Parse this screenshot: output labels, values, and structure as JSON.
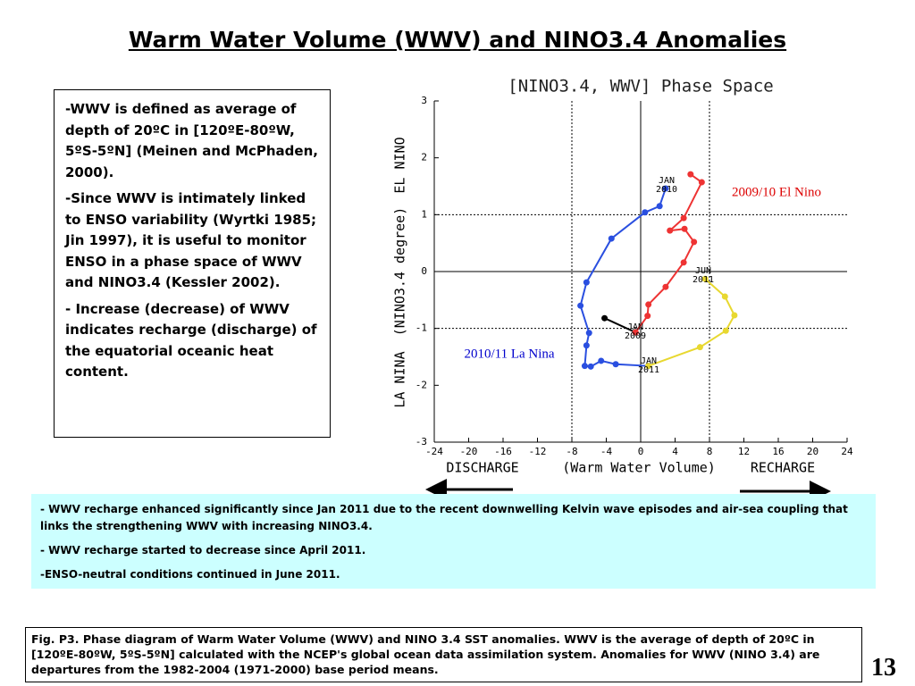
{
  "title": "Warm Water Volume (WWV) and NINO3.4 Anomalies",
  "left_box": {
    "paragraphs": [
      "-WWV is defined as average of depth of 20ºC in [120ºE-80ºW, 5ºS-5ºN] (Meinen and McPhaden, 2000).",
      "-Since WWV is intimately linked to ENSO variability (Wyrtki 1985; Jin 1997), it is useful to monitor ENSO in a phase space of WWV and NINO3.4 (Kessler 2002).",
      "- Increase (decrease) of WWV indicates recharge (discharge) of the equatorial oceanic heat content."
    ]
  },
  "notes_box": {
    "paragraphs": [
      "- WWV recharge enhanced significantly since Jan 2011 due to the recent downwelling Kelvin wave episodes  and air-sea coupling that links the strengthening WWV with increasing NINO3.4.",
      "- WWV recharge started to decrease since April 2011.",
      "-ENSO-neutral conditions continued in June 2011."
    ]
  },
  "caption": "Fig. P3. Phase diagram of Warm Water Volume (WWV) and NINO 3.4 SST anomalies. WWV is the average of depth of 20ºC in [120ºE-80ºW, 5ºS-5ºN] calculated with the NCEP's global ocean data assimilation system. Anomalies for WWV (NINO 3.4) are departures from the 1982-2004 (1971-2000) base period means.",
  "page_number": "13",
  "chart_data": {
    "type": "line",
    "title": "[NINO3.4, WWV] Phase Space",
    "xlabel": [
      "DISCHARGE",
      "(Warm Water Volume)",
      "RECHARGE"
    ],
    "ylabel": [
      "LA NINA",
      "(NINO3.4 degree)",
      "EL NINO"
    ],
    "xlim": [
      -24,
      24
    ],
    "xticks": [
      -24,
      -20,
      -16,
      -12,
      -8,
      -4,
      0,
      4,
      8,
      12,
      16,
      20,
      24
    ],
    "ylim": [
      -3,
      3
    ],
    "yticks": [
      -3,
      -2,
      -1,
      0,
      1,
      2,
      3
    ],
    "reference_lines": {
      "x": [
        -8,
        0,
        8
      ],
      "y": [
        -1,
        0,
        1
      ]
    },
    "series": [
      {
        "color": "#000000",
        "x": [
          -4.2,
          -0.6
        ],
        "values": [
          -0.82,
          -1.07
        ]
      },
      {
        "color": "#ee3333",
        "x": [
          -0.6,
          0.8,
          0.9,
          2.9,
          5.0,
          6.2,
          5.1,
          3.4,
          5.0,
          7.1,
          5.8
        ],
        "values": [
          -1.07,
          -0.78,
          -0.58,
          -0.27,
          0.16,
          0.52,
          0.75,
          0.72,
          0.94,
          1.57,
          1.71
        ]
      },
      {
        "color": "#2a4fe0",
        "x": [
          2.9,
          2.2,
          0.5,
          -3.4,
          -6.3,
          -7.0,
          -6.0,
          -6.3,
          -6.5,
          -5.8,
          -4.6,
          -2.9,
          0.9
        ],
        "values": [
          1.46,
          1.15,
          1.04,
          0.58,
          -0.19,
          -0.6,
          -1.08,
          -1.3,
          -1.66,
          -1.67,
          -1.57,
          -1.63,
          -1.66
        ]
      },
      {
        "color": "#e8d830",
        "x": [
          0.9,
          6.9,
          9.9,
          10.9,
          9.8,
          7.5
        ],
        "values": [
          -1.66,
          -1.33,
          -1.04,
          -0.77,
          -0.44,
          -0.13
        ]
      }
    ],
    "annotations": [
      {
        "text": "2009/10 El Nino",
        "color": "#dd0000"
      },
      {
        "text": "2010/11 La Nina",
        "color": "#0000cc"
      }
    ],
    "point_labels": [
      [
        "JAN",
        "2009"
      ],
      [
        "JAN",
        "2010"
      ],
      [
        "JAN",
        "2011"
      ],
      [
        "JUN",
        "2011"
      ]
    ]
  }
}
